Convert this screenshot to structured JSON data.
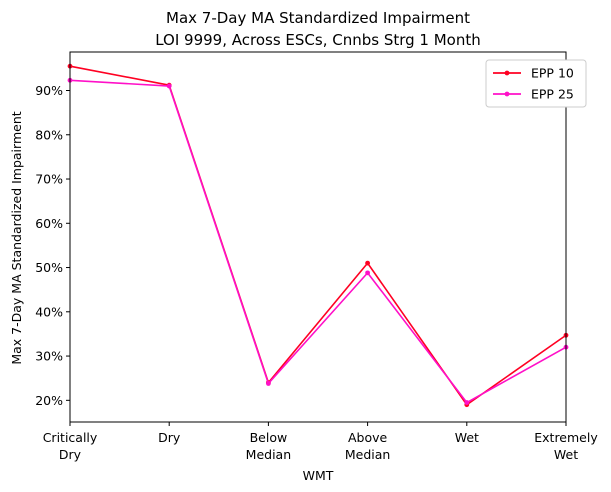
{
  "chart_data": {
    "type": "line",
    "title": [
      "Max 7-Day MA Standardized Impairment",
      "LOI 9999, Across ESCs, Cnnbs Strg 1 Month"
    ],
    "xlabel": "WMT",
    "ylabel": "Max 7-Day MA Standardized Impairment",
    "categories": [
      [
        "Critically",
        "Dry"
      ],
      [
        "Dry"
      ],
      [
        "Below",
        "Median"
      ],
      [
        "Above",
        "Median"
      ],
      [
        "Wet"
      ],
      [
        "Extremely",
        "Wet"
      ]
    ],
    "yticks": [
      0.2,
      0.3,
      0.4,
      0.5,
      0.6,
      0.7,
      0.8,
      0.9
    ],
    "ytick_labels": [
      "20%",
      "30%",
      "40%",
      "50%",
      "60%",
      "70%",
      "80%",
      "90%"
    ],
    "ylim": [
      0.151,
      0.987
    ],
    "legend_position": "top-right",
    "grid": false,
    "series": [
      {
        "name": "EPP 10",
        "color": "#ff0022",
        "values": [
          0.955,
          0.912,
          0.24,
          0.51,
          0.19,
          0.347
        ]
      },
      {
        "name": "EPP 25",
        "color": "#ff10c8",
        "values": [
          0.923,
          0.91,
          0.238,
          0.488,
          0.195,
          0.32
        ]
      }
    ]
  }
}
